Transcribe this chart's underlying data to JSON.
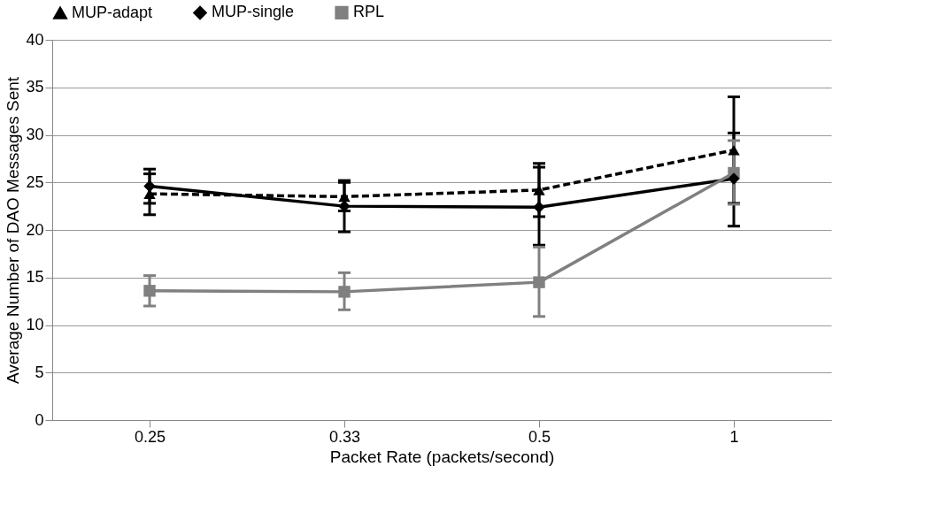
{
  "chart_data": {
    "type": "line",
    "xlabel": "Packet Rate (packets/second)",
    "ylabel": "Average Number of  DAO Messages Sent",
    "categories": [
      "0.25",
      "0.33",
      "0.5",
      "1"
    ],
    "series": [
      {
        "name": "MUP-adapt",
        "color": "#000000",
        "marker": "triangle",
        "line_style": "dashed",
        "values": [
          23.8,
          23.5,
          24.2,
          28.4
        ],
        "errors": [
          [
            21.6,
            25.9
          ],
          [
            22.0,
            25.0
          ],
          [
            21.4,
            27.0
          ],
          [
            22.8,
            34.0
          ]
        ]
      },
      {
        "name": "MUP-single",
        "color": "#000000",
        "marker": "diamond",
        "line_style": "solid",
        "values": [
          24.6,
          22.5,
          22.4,
          25.4
        ],
        "errors": [
          [
            22.8,
            26.4
          ],
          [
            19.8,
            25.2
          ],
          [
            18.4,
            26.6
          ],
          [
            20.4,
            30.2
          ]
        ]
      },
      {
        "name": "RPL",
        "color": "#808080",
        "marker": "square",
        "line_style": "solid",
        "values": [
          13.6,
          13.5,
          14.5,
          26.0
        ],
        "errors": [
          [
            12.0,
            15.2
          ],
          [
            11.6,
            15.5
          ],
          [
            10.9,
            18.2
          ],
          [
            22.7,
            29.4
          ]
        ]
      }
    ],
    "ylim": [
      0,
      40
    ],
    "yticks": [
      0,
      5,
      10,
      15,
      20,
      25,
      30,
      35,
      40
    ],
    "grid": "y",
    "legend": "top"
  }
}
